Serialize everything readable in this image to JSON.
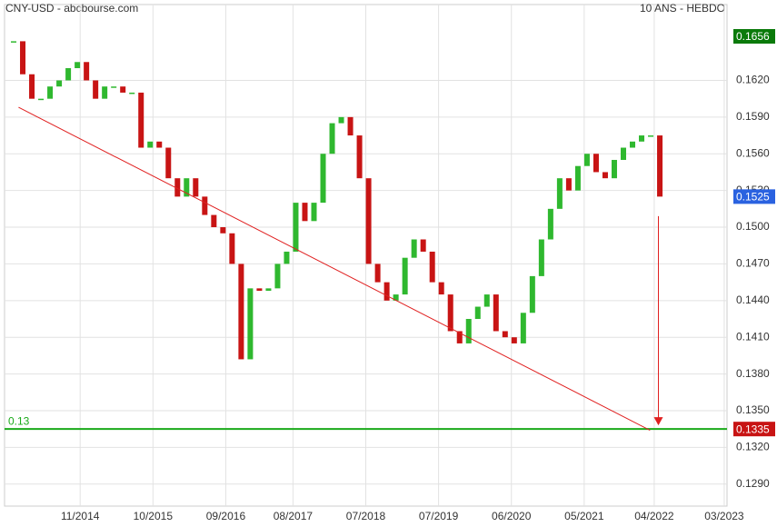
{
  "chart_data": {
    "type": "candlestick",
    "title": "CNY-USD - abcbourse.com",
    "subtitle": "10 ANS - HEBDO",
    "x": [
      6.5,
      13,
      19.5,
      26,
      32.5,
      39,
      45.5,
      52,
      58.5,
      65,
      71.5,
      78,
      84.5,
      91,
      97.5,
      104,
      110.5,
      117,
      123.5,
      130,
      136.5,
      143,
      149.5,
      156,
      162.5,
      169,
      175.5,
      182,
      188.5,
      195,
      201.5,
      208,
      214.5,
      221,
      227.5,
      234,
      240.5,
      247,
      253.5,
      260,
      266.5,
      273,
      279.5,
      286,
      292.5,
      299,
      305.5,
      312,
      318.5,
      325,
      331.5,
      338,
      344.5,
      351,
      357.5,
      364,
      370.5,
      377,
      383.5,
      390,
      396.5,
      403,
      409.5,
      416,
      422.5,
      429,
      435.5,
      442,
      448.5,
      455,
      461.5,
      468
    ],
    "close": [
      0.1652,
      0.1625,
      0.1605,
      0.1605,
      0.1615,
      0.162,
      0.163,
      0.1635,
      0.162,
      0.1605,
      0.1615,
      0.1615,
      0.161,
      0.161,
      0.1565,
      0.157,
      0.1565,
      0.154,
      0.1525,
      0.154,
      0.1525,
      0.151,
      0.15,
      0.1495,
      0.147,
      0.1392,
      0.145,
      0.1448,
      0.145,
      0.147,
      0.148,
      0.152,
      0.1505,
      0.152,
      0.156,
      0.1585,
      0.159,
      0.1575,
      0.154,
      0.147,
      0.1455,
      0.144,
      0.1445,
      0.1475,
      0.149,
      0.148,
      0.1455,
      0.1445,
      0.1415,
      0.1405,
      0.1425,
      0.1435,
      0.1445,
      0.1415,
      0.141,
      0.1405,
      0.143,
      0.146,
      0.149,
      0.1515,
      0.154,
      0.153,
      0.155,
      0.156,
      0.1545,
      0.154,
      0.1555,
      0.1565,
      0.157,
      0.1575,
      0.1575,
      0.1525
    ],
    "up_color": "#2fb82f",
    "down_color": "#c81414",
    "xlim": [
      0,
      516
    ],
    "ylim": [
      0.1272,
      0.1682
    ],
    "xticks": [
      {
        "value": 54,
        "label": "11/2014"
      },
      {
        "value": 106,
        "label": "10/2015"
      },
      {
        "value": 158,
        "label": "09/2016"
      },
      {
        "value": 206,
        "label": "08/2017"
      },
      {
        "value": 258,
        "label": "07/2018"
      },
      {
        "value": 310,
        "label": "07/2019"
      },
      {
        "value": 362,
        "label": "06/2020"
      },
      {
        "value": 414,
        "label": "05/2021"
      },
      {
        "value": 464,
        "label": "04/2022"
      },
      {
        "value": 514,
        "label": "03/2023"
      }
    ],
    "yticks": [
      {
        "value": 0.129,
        "label": "0.1290"
      },
      {
        "value": 0.132,
        "label": "0.1320"
      },
      {
        "value": 0.135,
        "label": "0.1350"
      },
      {
        "value": 0.138,
        "label": "0.1380"
      },
      {
        "value": 0.141,
        "label": "0.1410"
      },
      {
        "value": 0.144,
        "label": "0.1440"
      },
      {
        "value": 0.147,
        "label": "0.1470"
      },
      {
        "value": 0.15,
        "label": "0.1500"
      },
      {
        "value": 0.153,
        "label": "0.1530"
      },
      {
        "value": 0.156,
        "label": "0.1560"
      },
      {
        "value": 0.159,
        "label": "0.1590"
      },
      {
        "value": 0.162,
        "label": "0.1620"
      }
    ],
    "grid": true,
    "trendline": {
      "x": [
        10,
        461
      ],
      "y": [
        0.1598,
        0.1334
      ],
      "color": "#e02020"
    },
    "arrow": {
      "x": 467,
      "y": [
        0.1509,
        0.1338
      ],
      "color": "#e02020"
    },
    "level": {
      "name": "0.13",
      "value": 0.1335,
      "color": "#1aaa1a"
    },
    "price_tags": [
      {
        "value": 0.1656,
        "label": "0.1656",
        "color": "#0a7a0a"
      },
      {
        "value": 0.1525,
        "label": "0.1525",
        "color": "#2a62e0"
      },
      {
        "value": 0.1335,
        "label": "0.1335",
        "color": "#c81414"
      }
    ]
  }
}
